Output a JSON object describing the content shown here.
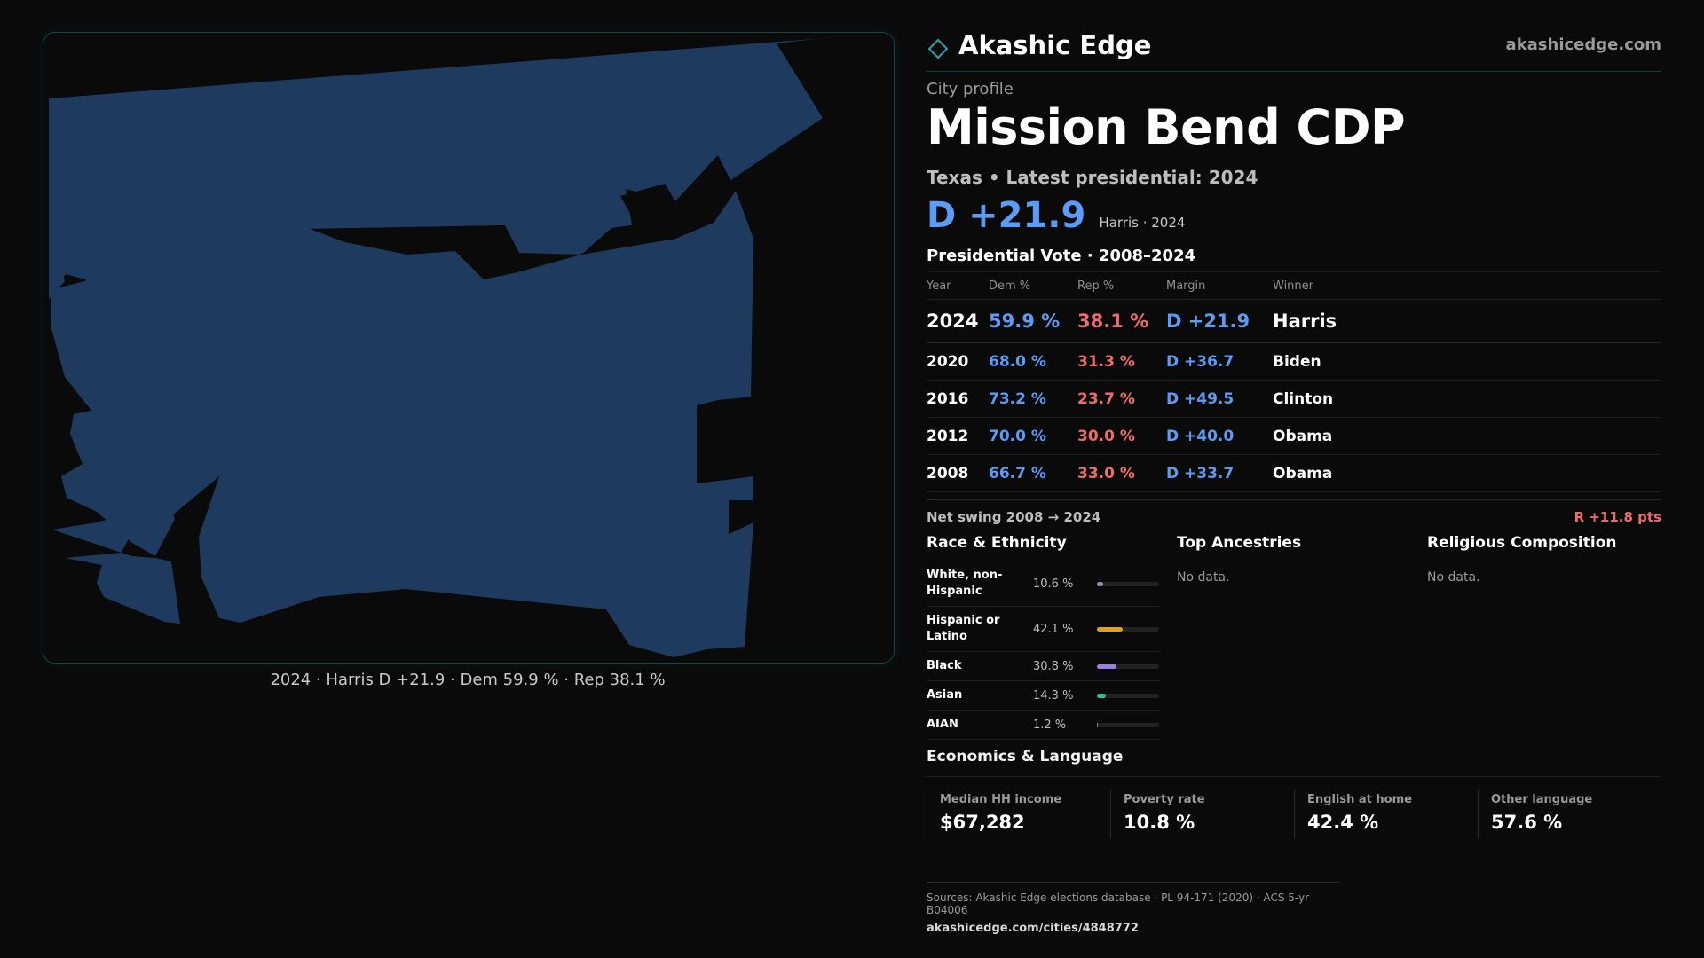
{
  "brand": {
    "name": "Akashic Edge",
    "url": "akashicedge.com"
  },
  "profile": {
    "kicker": "City profile",
    "title": "Mission Bend CDP",
    "subtitle": "Texas • Latest presidential: 2024",
    "headline_margin": "D +21.9",
    "headline_note": "Harris · 2024"
  },
  "map": {
    "caption": "2024 · Harris D +21.9 · Dem 59.9 % · Rep 38.1 %",
    "fill_color": "#1f3a5f"
  },
  "vote_table": {
    "title": "Presidential Vote · 2008–2024",
    "headers": [
      "Year",
      "Dem %",
      "Rep %",
      "Margin",
      "Winner"
    ],
    "rows": [
      {
        "year": "2024",
        "dem": "59.9 %",
        "rep": "38.1 %",
        "margin": "D +21.9",
        "winner": "Harris"
      },
      {
        "year": "2020",
        "dem": "68.0 %",
        "rep": "31.3 %",
        "margin": "D +36.7",
        "winner": "Biden"
      },
      {
        "year": "2016",
        "dem": "73.2 %",
        "rep": "23.7 %",
        "margin": "D +49.5",
        "winner": "Clinton"
      },
      {
        "year": "2012",
        "dem": "70.0 %",
        "rep": "30.0 %",
        "margin": "D +40.0",
        "winner": "Obama"
      },
      {
        "year": "2008",
        "dem": "66.7 %",
        "rep": "33.0 %",
        "margin": "D +33.7",
        "winner": "Obama"
      }
    ]
  },
  "swing": {
    "label": "Net swing 2008 → 2024",
    "value": "R +11.8 pts"
  },
  "race": {
    "title": "Race & Ethnicity",
    "rows": [
      {
        "label": "White, non-Hispanic",
        "pct": "10.6 %",
        "fraction": 0.106,
        "color": "#8a93a6"
      },
      {
        "label": "Hispanic or Latino",
        "pct": "42.1 %",
        "fraction": 0.421,
        "color": "#e0a21a"
      },
      {
        "label": "Black",
        "pct": "30.8 %",
        "fraction": 0.308,
        "color": "#9a7ee0"
      },
      {
        "label": "Asian",
        "pct": "14.3 %",
        "fraction": 0.143,
        "color": "#2bc38d"
      },
      {
        "label": "AIAN",
        "pct": "1.2 %",
        "fraction": 0.012,
        "color": "#d9702c"
      }
    ]
  },
  "ancestries": {
    "title": "Top Ancestries",
    "empty": "No data."
  },
  "religion": {
    "title": "Religious Composition",
    "empty": "No data."
  },
  "economics": {
    "title": "Economics & Language",
    "cells": [
      {
        "label": "Median HH income",
        "value": "$67,282"
      },
      {
        "label": "Poverty rate",
        "value": "10.8 %"
      },
      {
        "label": "English at home",
        "value": "42.4 %"
      },
      {
        "label": "Other language",
        "value": "57.6 %"
      }
    ]
  },
  "sources": {
    "line": "Sources: Akashic Edge elections database · PL 94-171 (2020) · ACS 5-yr B04006",
    "link": "akashicedge.com/cities/4848772"
  }
}
